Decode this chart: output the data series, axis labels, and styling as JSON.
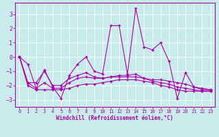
{
  "xlabel": "Windchill (Refroidissement éolien,°C)",
  "bg_color": "#c8ecec",
  "grid_color": "#ffffff",
  "line_color": "#aa00aa",
  "xlim": [
    -0.5,
    23.5
  ],
  "ylim": [
    -3.5,
    3.8
  ],
  "yticks": [
    -3,
    -2,
    -1,
    0,
    1,
    2,
    3
  ],
  "xticks": [
    0,
    1,
    2,
    3,
    4,
    5,
    6,
    7,
    8,
    9,
    10,
    11,
    12,
    13,
    14,
    15,
    16,
    17,
    18,
    19,
    20,
    21,
    22,
    23
  ],
  "xtick_labels": [
    "0",
    "1",
    "2",
    "3",
    "4",
    "5",
    "6",
    "7",
    "8",
    "9",
    "10",
    "11",
    "12",
    "13",
    "14",
    "15",
    "16",
    "17",
    "18",
    "19",
    "20",
    "21",
    "22",
    "23"
  ],
  "lines": [
    [
      0.0,
      -0.5,
      -2.2,
      -0.9,
      -2.1,
      -2.9,
      -1.3,
      -0.5,
      0.0,
      -1.0,
      -1.2,
      2.2,
      2.2,
      -1.2,
      3.4,
      0.7,
      0.5,
      1.0,
      -0.3,
      -2.9,
      -1.1,
      -2.1,
      -2.3,
      -2.3
    ],
    [
      0.0,
      -1.8,
      -1.8,
      -1.0,
      -2.0,
      -2.0,
      -1.5,
      -1.3,
      -1.1,
      -1.4,
      -1.5,
      -1.4,
      -1.3,
      -1.3,
      -1.2,
      -1.5,
      -1.6,
      -1.6,
      -1.7,
      -1.8,
      -1.9,
      -2.1,
      -2.2,
      -2.3
    ],
    [
      0.0,
      -1.8,
      -2.2,
      -1.8,
      -2.2,
      -2.2,
      -1.8,
      -1.5,
      -1.4,
      -1.5,
      -1.5,
      -1.4,
      -1.4,
      -1.4,
      -1.4,
      -1.5,
      -1.7,
      -1.8,
      -1.9,
      -2.1,
      -2.2,
      -2.3,
      -2.4,
      -2.4
    ],
    [
      0.0,
      -2.0,
      -2.3,
      -2.3,
      -2.3,
      -2.3,
      -2.2,
      -2.0,
      -1.9,
      -1.9,
      -1.8,
      -1.7,
      -1.6,
      -1.6,
      -1.6,
      -1.7,
      -1.8,
      -2.0,
      -2.1,
      -2.3,
      -2.4,
      -2.4,
      -2.4,
      -2.4
    ]
  ]
}
